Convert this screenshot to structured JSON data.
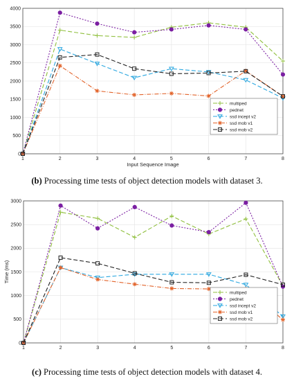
{
  "chart_data": [
    {
      "type": "line",
      "title": "",
      "xlabel": "Input Sequence Image",
      "ylabel": "",
      "x": [
        1,
        2,
        3,
        4,
        5,
        6,
        7,
        8
      ],
      "xlim": [
        1,
        8
      ],
      "ylim": [
        0,
        4000
      ],
      "yticks": [
        0,
        500,
        1000,
        1500,
        2000,
        2500,
        3000,
        3500,
        4000
      ],
      "grid": true,
      "legend_position": "lower-right",
      "series": [
        {
          "name": "multiped",
          "color": "#8fbf3c",
          "dash": "6,3",
          "marker": "plus",
          "values": [
            0,
            3400,
            3250,
            3200,
            3480,
            3600,
            3480,
            2550
          ]
        },
        {
          "name": "pednet",
          "color": "#7b1fa2",
          "dash": "2,2",
          "marker": "circle",
          "values": [
            0,
            3880,
            3580,
            3340,
            3420,
            3530,
            3420,
            2180
          ]
        },
        {
          "name": "ssd incept v2",
          "color": "#2aa7e0",
          "dash": "6,3",
          "marker": "triangle",
          "values": [
            0,
            2880,
            2480,
            2090,
            2340,
            2250,
            2030,
            1530
          ]
        },
        {
          "name": "ssd mob v1",
          "color": "#e2632a",
          "dash": "6,2,1,2",
          "marker": "star",
          "values": [
            0,
            2420,
            1730,
            1620,
            1660,
            1590,
            2280,
            1580
          ]
        },
        {
          "name": "ssd mob v2",
          "color": "#222222",
          "dash": "6,3",
          "marker": "square",
          "values": [
            0,
            2650,
            2730,
            2340,
            2200,
            2220,
            2270,
            1580
          ]
        }
      ]
    },
    {
      "type": "line",
      "title": "",
      "xlabel": "",
      "ylabel": "Time (ms)",
      "x": [
        1,
        2,
        3,
        4,
        5,
        6,
        7,
        8
      ],
      "xlim": [
        1,
        8
      ],
      "ylim": [
        0,
        3000
      ],
      "yticks": [
        0,
        500,
        1000,
        1500,
        2000,
        2500,
        3000
      ],
      "grid": true,
      "legend_position": "lower-right",
      "series": [
        {
          "name": "multiped",
          "color": "#8fbf3c",
          "dash": "6,3",
          "marker": "plus",
          "values": [
            0,
            2760,
            2630,
            2230,
            2680,
            2300,
            2620,
            1200
          ]
        },
        {
          "name": "pednet",
          "color": "#7b1fa2",
          "dash": "2,2",
          "marker": "circle",
          "values": [
            0,
            2900,
            2420,
            2870,
            2480,
            2340,
            2960,
            1190
          ]
        },
        {
          "name": "ssd incept v2",
          "color": "#2aa7e0",
          "dash": "6,3",
          "marker": "triangle",
          "values": [
            0,
            1590,
            1380,
            1450,
            1450,
            1450,
            1230,
            560
          ]
        },
        {
          "name": "ssd mob v1",
          "color": "#e2632a",
          "dash": "6,2,1,2",
          "marker": "star",
          "values": [
            0,
            1590,
            1340,
            1240,
            1150,
            1140,
            1140,
            490
          ]
        },
        {
          "name": "ssd mob v2",
          "color": "#222222",
          "dash": "6,3",
          "marker": "square",
          "values": [
            0,
            1800,
            1680,
            1470,
            1280,
            1270,
            1440,
            1230
          ]
        }
      ]
    }
  ],
  "captions": [
    {
      "tag": "(b)",
      "text": " Processing time tests of object detection models with dataset 3."
    },
    {
      "tag": "(c)",
      "text": " Processing time tests of object detection models with dataset 4."
    }
  ]
}
